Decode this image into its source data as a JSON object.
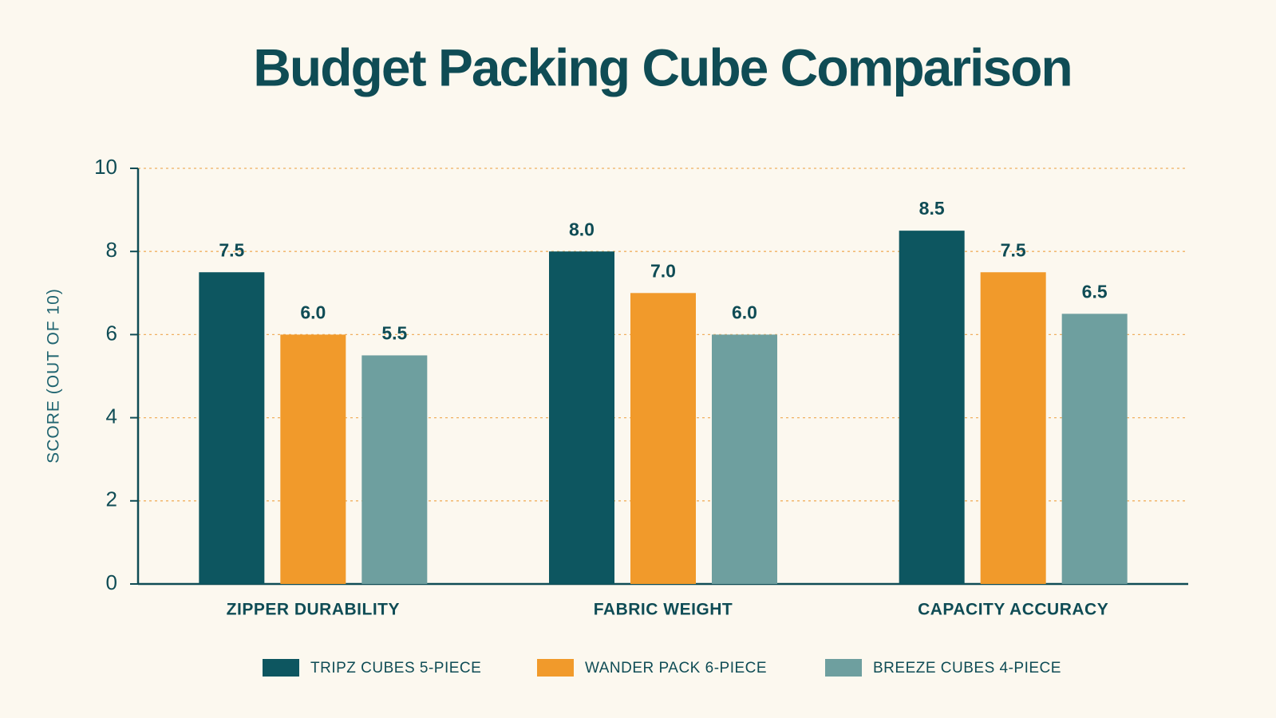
{
  "chart_data": {
    "type": "bar",
    "title": "Budget Packing Cube Comparison",
    "y_label": "SCORE (OUT OF 10)",
    "categories": [
      "ZIPPER DURABILITY",
      "FABRIC WEIGHT",
      "CAPACITY ACCURACY"
    ],
    "series": [
      {
        "name": "TRIPZ CUBES 5-PIECE",
        "color": "#0d5660",
        "values": [
          7.5,
          8,
          8.5
        ],
        "value_labels": [
          "7.5",
          "8.0",
          "8.5"
        ]
      },
      {
        "name": "WANDER PACK 6-PIECE",
        "color": "#f19a2b",
        "values": [
          6,
          7,
          7.5
        ],
        "value_labels": [
          "6.0",
          "7.0",
          "7.5"
        ]
      },
      {
        "name": "BREEZE CUBES 4-PIECE",
        "color": "#6e9f9f",
        "values": [
          5.5,
          6,
          6.5
        ],
        "value_labels": [
          "5.5",
          "6.0",
          "6.5"
        ]
      }
    ],
    "ylim": [
      0,
      10
    ],
    "yticks": [
      0,
      2,
      4,
      6,
      8,
      10
    ],
    "grid": true,
    "legend": "bottom"
  }
}
